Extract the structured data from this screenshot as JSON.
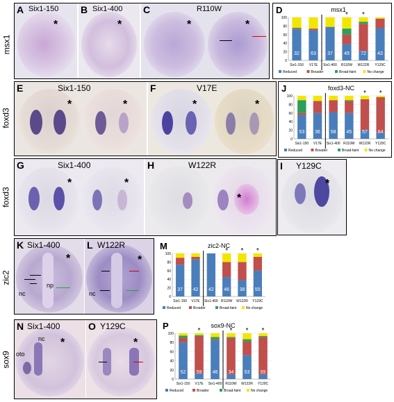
{
  "row_labels": {
    "msx1": "msx1",
    "foxd3a": "foxd3",
    "foxd3b": "foxd3",
    "zic2": "zic2",
    "sox9": "sox9"
  },
  "panels": {
    "A": {
      "letter": "A",
      "title": "Six1-150"
    },
    "B": {
      "letter": "B",
      "title": "Six1-400"
    },
    "C": {
      "letter": "C",
      "title": "R110W"
    },
    "E": {
      "letter": "E",
      "title": "Six1-150"
    },
    "F": {
      "letter": "F",
      "title": "V17E"
    },
    "G": {
      "letter": "G",
      "title": "Six1-400"
    },
    "H": {
      "letter": "H",
      "title": "W122R"
    },
    "I": {
      "letter": "I",
      "title": "Y129C"
    },
    "K": {
      "letter": "K",
      "title": "Six1-400",
      "nc": "nc",
      "np": "np"
    },
    "L": {
      "letter": "L",
      "title": "W122R",
      "nc": "nc"
    },
    "N": {
      "letter": "N",
      "title": "Six1-400",
      "oto": "oto",
      "nc": "nc"
    },
    "O": {
      "letter": "O",
      "title": "Y129C"
    }
  },
  "star": "*",
  "colors": {
    "reduced": "#4a7ebb",
    "broader": "#c0504d",
    "broadfaint": "#2e9e5b",
    "nochange": "#f2e600"
  },
  "legend": [
    "Reduced",
    "Broader",
    "Broad-faint",
    "No change"
  ],
  "chart_data": [
    {
      "letter": "D",
      "type": "bar",
      "title": "msx1",
      "categories": [
        "Six1-150",
        "V17E",
        "Six1-400",
        "R110W",
        "W122R",
        "Y129C"
      ],
      "ylim": [
        0,
        100
      ],
      "yticks": [
        0,
        20,
        40,
        60,
        80,
        100
      ],
      "stacked": true,
      "series": [
        {
          "name": "Reduced",
          "values": [
            72,
            70,
            78,
            38,
            22,
            75
          ]
        },
        {
          "name": "Broader",
          "values": [
            2,
            4,
            0,
            22,
            63,
            22
          ]
        },
        {
          "name": "Broad-faint",
          "values": [
            2,
            0,
            0,
            14,
            5,
            0
          ]
        },
        {
          "name": "No change",
          "values": [
            24,
            26,
            22,
            26,
            10,
            3
          ]
        }
      ],
      "labels": [
        "32",
        "63",
        "37",
        "49",
        "72",
        "43"
      ],
      "stars": [
        false,
        false,
        false,
        true,
        true,
        false
      ],
      "divider_after": 1
    },
    {
      "letter": "J",
      "type": "bar",
      "title": "foxd3-NC",
      "categories": [
        "Six1-150",
        "V17E",
        "Six1-400",
        "R110W",
        "W122R",
        "Y129C"
      ],
      "ylim": [
        0,
        100
      ],
      "yticks": [
        0,
        20,
        40,
        60,
        80,
        100
      ],
      "stacked": true,
      "series": [
        {
          "name": "Reduced",
          "values": [
            55,
            60,
            62,
            60,
            20,
            15
          ]
        },
        {
          "name": "Broader",
          "values": [
            5,
            28,
            28,
            28,
            72,
            82
          ]
        },
        {
          "name": "Broad-faint",
          "values": [
            30,
            0,
            0,
            2,
            0,
            0
          ]
        },
        {
          "name": "No change",
          "values": [
            10,
            12,
            10,
            10,
            8,
            3
          ]
        }
      ],
      "labels": [
        "53",
        "36",
        "58",
        "45",
        "57",
        "64"
      ],
      "stars": [
        false,
        false,
        false,
        false,
        true,
        true
      ],
      "divider_after": 1
    },
    {
      "letter": "M",
      "type": "bar",
      "title": "zic2-NC",
      "categories": [
        "Six1-150",
        "V17E",
        "Six1-400",
        "R110W",
        "W122R",
        "Y129C"
      ],
      "ylim": [
        0,
        100
      ],
      "yticks": [
        0,
        20,
        40,
        60,
        80,
        100
      ],
      "stacked": true,
      "series": [
        {
          "name": "Reduced",
          "values": [
            74,
            86,
            100,
            45,
            38,
            60
          ]
        },
        {
          "name": "Broader",
          "values": [
            16,
            6,
            0,
            35,
            42,
            32
          ]
        },
        {
          "name": "Broad-faint",
          "values": [
            0,
            0,
            0,
            0,
            0,
            0
          ]
        },
        {
          "name": "No change",
          "values": [
            10,
            8,
            0,
            20,
            20,
            8
          ]
        }
      ],
      "labels": [
        "37",
        "42",
        "42",
        "46",
        "38",
        "55"
      ],
      "stars": [
        false,
        false,
        false,
        true,
        true,
        true
      ],
      "divider_after": 1
    },
    {
      "letter": "P",
      "type": "bar",
      "title": "sox9-NC",
      "categories": [
        "Six1-150",
        "V17E",
        "Six1-400",
        "R110W",
        "W122R",
        "Y129C"
      ],
      "ylim": [
        0,
        100
      ],
      "yticks": [
        0,
        20,
        40,
        60,
        80,
        100
      ],
      "stacked": true,
      "series": [
        {
          "name": "Reduced",
          "values": [
            80,
            12,
            85,
            10,
            52,
            10
          ]
        },
        {
          "name": "Broader",
          "values": [
            10,
            82,
            2,
            80,
            30,
            82
          ]
        },
        {
          "name": "Broad-faint",
          "values": [
            5,
            2,
            5,
            2,
            5,
            2
          ]
        },
        {
          "name": "No change",
          "values": [
            5,
            4,
            8,
            8,
            13,
            6
          ]
        }
      ],
      "labels": [
        "52",
        "59",
        "46",
        "34",
        "53",
        "55"
      ],
      "stars": [
        false,
        true,
        false,
        true,
        true,
        true
      ],
      "divider_after": 2
    }
  ]
}
